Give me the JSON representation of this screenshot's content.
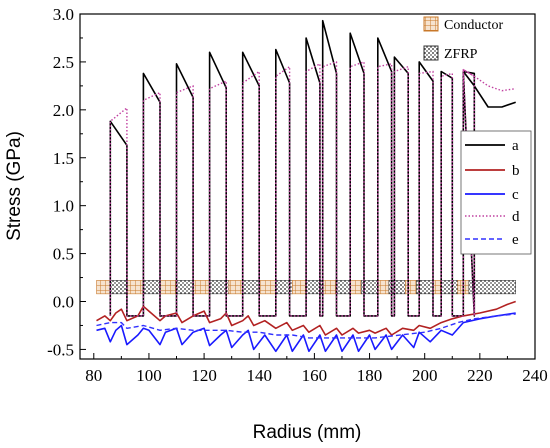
{
  "chart_data": {
    "type": "line",
    "xlabel": "Radius (mm)",
    "ylabel": "Stress (GPa)",
    "xlim": [
      75,
      240
    ],
    "ylim": [
      -0.6,
      3.0
    ],
    "x_ticks": [
      80,
      100,
      120,
      140,
      160,
      180,
      200,
      220,
      240
    ],
    "y_ticks": [
      -0.5,
      0.0,
      0.5,
      1.0,
      1.5,
      2.0,
      2.5,
      3.0
    ],
    "x_tick_labels": [
      "80",
      "100",
      "120",
      "140",
      "160",
      "180",
      "200",
      "220",
      "240"
    ],
    "y_tick_labels": [
      "-0.5",
      "0.0",
      "0.5",
      "1.0",
      "1.5",
      "2.0",
      "2.5",
      "3.0"
    ],
    "grid": false,
    "legend_position": "right",
    "material_legend": [
      {
        "name": "Conductor",
        "pattern": "grid",
        "color": "#c8782a"
      },
      {
        "name": "ZFRP",
        "pattern": "dots",
        "color": "#333333"
      }
    ],
    "layer_band": {
      "y_range": [
        0.08,
        0.22
      ],
      "segments": [
        {
          "material": "Conductor",
          "x": [
            81,
            86
          ]
        },
        {
          "material": "ZFRP",
          "x": [
            86,
            92
          ]
        },
        {
          "material": "Conductor",
          "x": [
            92,
            98
          ]
        },
        {
          "material": "ZFRP",
          "x": [
            98,
            104
          ]
        },
        {
          "material": "Conductor",
          "x": [
            104,
            110
          ]
        },
        {
          "material": "ZFRP",
          "x": [
            110,
            116
          ]
        },
        {
          "material": "Conductor",
          "x": [
            116,
            122
          ]
        },
        {
          "material": "ZFRP",
          "x": [
            122,
            129
          ]
        },
        {
          "material": "Conductor",
          "x": [
            129,
            134
          ]
        },
        {
          "material": "ZFRP",
          "x": [
            134,
            140
          ]
        },
        {
          "material": "Conductor",
          "x": [
            140,
            146
          ]
        },
        {
          "material": "ZFRP",
          "x": [
            146,
            152
          ]
        },
        {
          "material": "Conductor",
          "x": [
            152,
            157
          ]
        },
        {
          "material": "ZFRP",
          "x": [
            157,
            163
          ]
        },
        {
          "material": "Conductor",
          "x": [
            163,
            168
          ]
        },
        {
          "material": "ZFRP",
          "x": [
            168,
            173
          ]
        },
        {
          "material": "Conductor",
          "x": [
            173,
            177
          ]
        },
        {
          "material": "ZFRP",
          "x": [
            177,
            183
          ]
        },
        {
          "material": "Conductor",
          "x": [
            183,
            187
          ]
        },
        {
          "material": "ZFRP",
          "x": [
            187,
            193
          ]
        },
        {
          "material": "Conductor",
          "x": [
            193,
            197
          ]
        },
        {
          "material": "ZFRP",
          "x": [
            197,
            203
          ]
        },
        {
          "material": "Conductor",
          "x": [
            203,
            206
          ]
        },
        {
          "material": "ZFRP",
          "x": [
            206,
            212
          ]
        },
        {
          "material": "Conductor",
          "x": [
            212,
            216
          ]
        },
        {
          "material": "ZFRP",
          "x": [
            216,
            233
          ]
        }
      ]
    },
    "series": [
      {
        "name": "a",
        "color": "#000000",
        "dash": "solid",
        "zfrp_blocks": [
          [
            86,
            92,
            1.88,
            1.63
          ],
          [
            98,
            104,
            2.38,
            2.08
          ],
          [
            110,
            116,
            2.48,
            2.13
          ],
          [
            122,
            128,
            2.6,
            2.23
          ],
          [
            134,
            140,
            2.6,
            2.25
          ],
          [
            146,
            151,
            2.63,
            2.28
          ],
          [
            157,
            162,
            2.75,
            2.28
          ],
          [
            163,
            168,
            2.93,
            2.38
          ],
          [
            173,
            178,
            2.8,
            2.38
          ],
          [
            183,
            188,
            2.75,
            2.4
          ],
          [
            189,
            194,
            2.55,
            2.38
          ],
          [
            198,
            203,
            2.5,
            2.3
          ],
          [
            206,
            210,
            2.4,
            2.33
          ],
          [
            214,
            218,
            2.4,
            2.38
          ]
        ],
        "tail": [
          [
            214,
            2.4
          ],
          [
            218,
            2.25
          ],
          [
            223,
            2.03
          ],
          [
            228,
            2.03
          ],
          [
            233,
            2.08
          ]
        ]
      },
      {
        "name": "b",
        "color": "#b22222",
        "dash": "solid",
        "points": [
          [
            81,
            -0.2
          ],
          [
            84,
            -0.15
          ],
          [
            86,
            -0.2
          ],
          [
            88,
            -0.12
          ],
          [
            90,
            -0.08
          ],
          [
            92,
            -0.2
          ],
          [
            96,
            -0.15
          ],
          [
            98,
            -0.05
          ],
          [
            100,
            -0.1
          ],
          [
            104,
            -0.2
          ],
          [
            106,
            -0.15
          ],
          [
            110,
            -0.12
          ],
          [
            112,
            -0.22
          ],
          [
            116,
            -0.15
          ],
          [
            120,
            -0.1
          ],
          [
            122,
            -0.22
          ],
          [
            126,
            -0.18
          ],
          [
            128,
            -0.12
          ],
          [
            130,
            -0.25
          ],
          [
            134,
            -0.2
          ],
          [
            136,
            -0.15
          ],
          [
            138,
            -0.25
          ],
          [
            142,
            -0.2
          ],
          [
            146,
            -0.28
          ],
          [
            150,
            -0.22
          ],
          [
            152,
            -0.3
          ],
          [
            156,
            -0.25
          ],
          [
            158,
            -0.32
          ],
          [
            162,
            -0.25
          ],
          [
            164,
            -0.35
          ],
          [
            168,
            -0.28
          ],
          [
            170,
            -0.35
          ],
          [
            174,
            -0.28
          ],
          [
            176,
            -0.33
          ],
          [
            180,
            -0.3
          ],
          [
            182,
            -0.33
          ],
          [
            186,
            -0.28
          ],
          [
            188,
            -0.35
          ],
          [
            192,
            -0.28
          ],
          [
            196,
            -0.3
          ],
          [
            198,
            -0.25
          ],
          [
            202,
            -0.28
          ],
          [
            206,
            -0.22
          ],
          [
            210,
            -0.18
          ],
          [
            214,
            -0.15
          ],
          [
            220,
            -0.12
          ],
          [
            226,
            -0.08
          ],
          [
            230,
            -0.03
          ],
          [
            233,
            0.0
          ]
        ]
      },
      {
        "name": "c",
        "color": "#1a1aff",
        "dash": "solid",
        "points": [
          [
            81,
            -0.3
          ],
          [
            84,
            -0.28
          ],
          [
            86,
            -0.42
          ],
          [
            88,
            -0.3
          ],
          [
            90,
            -0.25
          ],
          [
            92,
            -0.45
          ],
          [
            96,
            -0.35
          ],
          [
            98,
            -0.28
          ],
          [
            100,
            -0.3
          ],
          [
            104,
            -0.45
          ],
          [
            106,
            -0.32
          ],
          [
            110,
            -0.28
          ],
          [
            112,
            -0.45
          ],
          [
            116,
            -0.32
          ],
          [
            120,
            -0.28
          ],
          [
            122,
            -0.46
          ],
          [
            126,
            -0.35
          ],
          [
            128,
            -0.3
          ],
          [
            130,
            -0.48
          ],
          [
            134,
            -0.35
          ],
          [
            136,
            -0.3
          ],
          [
            138,
            -0.5
          ],
          [
            142,
            -0.35
          ],
          [
            146,
            -0.52
          ],
          [
            150,
            -0.35
          ],
          [
            152,
            -0.52
          ],
          [
            156,
            -0.35
          ],
          [
            158,
            -0.52
          ],
          [
            162,
            -0.35
          ],
          [
            164,
            -0.52
          ],
          [
            168,
            -0.35
          ],
          [
            170,
            -0.52
          ],
          [
            174,
            -0.35
          ],
          [
            176,
            -0.52
          ],
          [
            180,
            -0.35
          ],
          [
            182,
            -0.5
          ],
          [
            186,
            -0.35
          ],
          [
            188,
            -0.5
          ],
          [
            192,
            -0.35
          ],
          [
            196,
            -0.48
          ],
          [
            198,
            -0.32
          ],
          [
            202,
            -0.42
          ],
          [
            206,
            -0.3
          ],
          [
            210,
            -0.35
          ],
          [
            214,
            -0.22
          ],
          [
            220,
            -0.18
          ],
          [
            226,
            -0.15
          ],
          [
            233,
            -0.12
          ]
        ]
      },
      {
        "name": "d",
        "color": "#c040a0",
        "dash": "dotted",
        "zfrp_blocks": [
          [
            86,
            92,
            1.88,
            2.02
          ],
          [
            98,
            104,
            2.1,
            2.18
          ],
          [
            110,
            116,
            2.18,
            2.25
          ],
          [
            122,
            128,
            2.22,
            2.3
          ],
          [
            134,
            140,
            2.28,
            2.4
          ],
          [
            146,
            151,
            2.35,
            2.45
          ],
          [
            157,
            162,
            2.4,
            2.48
          ],
          [
            163,
            168,
            2.45,
            2.5
          ],
          [
            173,
            178,
            2.45,
            2.5
          ],
          [
            183,
            188,
            2.45,
            2.48
          ],
          [
            189,
            194,
            2.4,
            2.45
          ],
          [
            198,
            203,
            2.38,
            2.4
          ],
          [
            206,
            210,
            2.35,
            2.38
          ],
          [
            214,
            218,
            2.42,
            2.35
          ]
        ],
        "tail": [
          [
            214,
            2.42
          ],
          [
            218,
            2.35
          ],
          [
            223,
            2.25
          ],
          [
            228,
            2.2
          ],
          [
            233,
            2.22
          ]
        ]
      },
      {
        "name": "e",
        "color": "#3030ff",
        "dash": "dashed",
        "points": [
          [
            81,
            -0.25
          ],
          [
            86,
            -0.22
          ],
          [
            90,
            -0.22
          ],
          [
            92,
            -0.28
          ],
          [
            98,
            -0.25
          ],
          [
            104,
            -0.3
          ],
          [
            110,
            -0.28
          ],
          [
            116,
            -0.3
          ],
          [
            122,
            -0.3
          ],
          [
            128,
            -0.3
          ],
          [
            134,
            -0.32
          ],
          [
            140,
            -0.32
          ],
          [
            146,
            -0.35
          ],
          [
            152,
            -0.35
          ],
          [
            158,
            -0.38
          ],
          [
            164,
            -0.38
          ],
          [
            170,
            -0.38
          ],
          [
            176,
            -0.38
          ],
          [
            182,
            -0.38
          ],
          [
            188,
            -0.36
          ],
          [
            194,
            -0.34
          ],
          [
            200,
            -0.32
          ],
          [
            206,
            -0.28
          ],
          [
            212,
            -0.22
          ],
          [
            218,
            -0.18
          ],
          [
            226,
            -0.15
          ],
          [
            233,
            -0.13
          ]
        ]
      }
    ]
  }
}
